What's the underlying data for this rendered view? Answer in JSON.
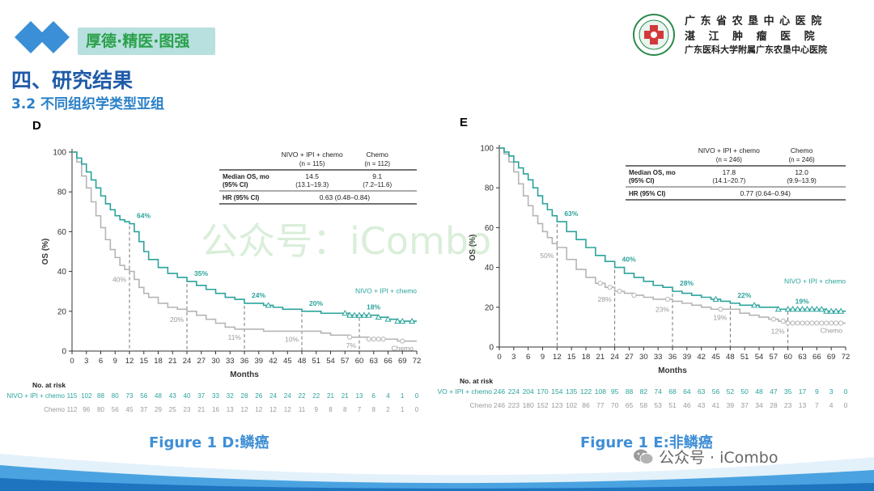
{
  "header": {
    "motto": "厚德·精医·图强",
    "hospital_name_line1": "广 东 省 农 垦 中 心 医 院",
    "hospital_name_line2": "湛 江 肿 瘤 医 院",
    "hospital_name_line3": "广东医科大学附属广东农垦中心医院",
    "section_title": "四、研究结果",
    "subsection_title": "3.2 不同组织学类型亚组"
  },
  "captions": {
    "figure_d": "Figure 1 D:鳞癌",
    "figure_e": "Figure 1 E:非鳞癌"
  },
  "watermarks": {
    "center": "公众号：iCombo",
    "corner": "公众号 · iCombo"
  },
  "colors": {
    "nivo": "#2aa39b",
    "chemo": "#b5b5b5",
    "accent_blue": "#1f5aa8"
  },
  "chart_data": [
    {
      "panel": "D",
      "type": "line",
      "title": "",
      "xlabel": "Months",
      "ylabel": "OS (%)",
      "xlim": [
        0,
        72
      ],
      "ylim": [
        0,
        100
      ],
      "xticks": [
        0,
        3,
        6,
        9,
        12,
        15,
        18,
        21,
        24,
        27,
        30,
        33,
        36,
        39,
        42,
        45,
        48,
        51,
        54,
        57,
        60,
        63,
        66,
        69,
        72
      ],
      "yticks": [
        0,
        20,
        40,
        60,
        80,
        100
      ],
      "table": {
        "col1": "NIVO + IPI + chemo",
        "col1_n": "(n = 115)",
        "col2": "Chemo",
        "col2_n": "(n = 112)",
        "row1_label": "Median OS, mo",
        "row1_sub": "(95% CI)",
        "row1_v1": "14.5",
        "row1_v1_ci": "(13.1–19.3)",
        "row1_v2": "9.1",
        "row1_v2_ci": "(7.2–11.6)",
        "row2_label": "HR (95% CI)",
        "row2_value": "0.63 (0.48–0.84)"
      },
      "series": [
        {
          "name": "NIVO + IPI + chemo",
          "label": "NIVO + IPI + chemo",
          "x": [
            0,
            1,
            2,
            3,
            4,
            5,
            6,
            7,
            8,
            9,
            10,
            11,
            12,
            13,
            14,
            15,
            16,
            18,
            20,
            22,
            24,
            26,
            28,
            30,
            32,
            34,
            36,
            38,
            40,
            42,
            44,
            46,
            48,
            50,
            52,
            54,
            56,
            58,
            60,
            62,
            64,
            66,
            68,
            70,
            72
          ],
          "y": [
            100,
            97,
            94,
            90,
            86,
            82,
            78,
            74,
            71,
            68,
            66,
            65,
            64,
            60,
            55,
            50,
            46,
            42,
            39,
            37,
            35,
            33,
            31,
            29,
            27,
            26,
            24,
            24,
            23,
            22,
            21,
            21,
            20,
            20,
            19,
            19,
            19,
            18,
            18,
            18,
            17,
            16,
            15,
            15,
            15
          ],
          "censors_x": [
            41,
            57,
            58,
            59,
            60,
            61,
            62,
            64,
            66,
            68,
            69,
            71
          ],
          "annotations": [
            {
              "x": 12,
              "y": 64,
              "text": "64%"
            },
            {
              "x": 24,
              "y": 35,
              "text": "35%"
            },
            {
              "x": 36,
              "y": 24,
              "text": "24%"
            },
            {
              "x": 48,
              "y": 20,
              "text": "20%"
            },
            {
              "x": 60,
              "y": 18,
              "text": "18%"
            }
          ]
        },
        {
          "name": "Chemo",
          "label": "Chemo",
          "x": [
            0,
            1,
            2,
            3,
            4,
            5,
            6,
            7,
            8,
            9,
            10,
            11,
            12,
            13,
            14,
            15,
            16,
            18,
            20,
            22,
            24,
            26,
            28,
            30,
            32,
            34,
            36,
            38,
            40,
            42,
            44,
            46,
            48,
            50,
            52,
            54,
            56,
            58,
            60,
            62,
            64,
            66,
            68,
            70,
            72
          ],
          "y": [
            100,
            95,
            88,
            82,
            75,
            68,
            62,
            56,
            51,
            47,
            43,
            41,
            40,
            36,
            32,
            29,
            27,
            24,
            22,
            21,
            20,
            18,
            16,
            14,
            12,
            11,
            11,
            11,
            10,
            10,
            10,
            10,
            10,
            10,
            9,
            8,
            8,
            7,
            7,
            6,
            6,
            6,
            5,
            5,
            5
          ],
          "censors_x": [
            58,
            62,
            63,
            64,
            65,
            69
          ],
          "annotations": [
            {
              "x": 12,
              "y": 40,
              "text": "40%"
            },
            {
              "x": 24,
              "y": 20,
              "text": "20%"
            },
            {
              "x": 36,
              "y": 11,
              "text": "11%"
            },
            {
              "x": 48,
              "y": 10,
              "text": "10%"
            },
            {
              "x": 60,
              "y": 7,
              "text": "7%"
            }
          ]
        }
      ],
      "at_risk": {
        "title": "No. at risk",
        "rows": [
          {
            "label": "NIVO + IPI + chemo",
            "values": [
              "115",
              "102",
              "88",
              "80",
              "73",
              "56",
              "48",
              "43",
              "40",
              "37",
              "33",
              "32",
              "28",
              "26",
              "24",
              "24",
              "22",
              "22",
              "21",
              "21",
              "13",
              "6",
              "4",
              "1",
              "0"
            ]
          },
          {
            "label": "Chemo",
            "values": [
              "112",
              "96",
              "80",
              "56",
              "45",
              "37",
              "29",
              "25",
              "23",
              "21",
              "16",
              "13",
              "12",
              "12",
              "12",
              "12",
              "11",
              "9",
              "8",
              "8",
              "7",
              "8",
              "2",
              "1",
              "0"
            ]
          }
        ]
      }
    },
    {
      "panel": "E",
      "type": "line",
      "title": "",
      "xlabel": "Months",
      "ylabel": "OS (%)",
      "xlim": [
        0,
        72
      ],
      "ylim": [
        0,
        100
      ],
      "xticks": [
        0,
        3,
        6,
        9,
        12,
        15,
        18,
        21,
        24,
        27,
        30,
        33,
        36,
        39,
        42,
        45,
        48,
        51,
        54,
        57,
        60,
        63,
        66,
        69,
        72
      ],
      "yticks": [
        0,
        20,
        40,
        60,
        80,
        100
      ],
      "table": {
        "col1": "NIVO + IPI + chemo",
        "col1_n": "(n = 246)",
        "col2": "Chemo",
        "col2_n": "(n = 246)",
        "row1_label": "Median OS, mo",
        "row1_sub": "(95% CI)",
        "row1_v1": "17.8",
        "row1_v1_ci": "(14.1–20.7)",
        "row1_v2": "12.0",
        "row1_v2_ci": "(9.9–13.9)",
        "row2_label": "HR (95% CI)",
        "row2_value": "0.77 (0.64–0.94)"
      },
      "series": [
        {
          "name": "NIVO + IPI + chemo",
          "label": "NIVO + IPI + chemo",
          "x": [
            0,
            1,
            2,
            3,
            4,
            5,
            6,
            7,
            8,
            9,
            10,
            11,
            12,
            14,
            16,
            18,
            20,
            22,
            24,
            26,
            28,
            30,
            32,
            34,
            36,
            38,
            40,
            42,
            44,
            46,
            48,
            50,
            52,
            54,
            56,
            58,
            60,
            62,
            64,
            66,
            68,
            70,
            72
          ],
          "y": [
            100,
            98,
            96,
            93,
            90,
            87,
            84,
            80,
            76,
            72,
            69,
            66,
            63,
            58,
            54,
            50,
            46,
            43,
            40,
            37,
            35,
            33,
            31,
            30,
            28,
            27,
            26,
            25,
            24,
            23,
            22,
            21,
            21,
            20,
            20,
            19,
            19,
            19,
            19,
            19,
            18,
            18,
            18
          ],
          "censors_x": [
            45,
            53,
            58,
            60,
            61,
            62,
            63,
            64,
            65,
            66,
            67,
            68,
            69,
            70,
            71
          ],
          "annotations": [
            {
              "x": 12,
              "y": 63,
              "text": "63%"
            },
            {
              "x": 24,
              "y": 40,
              "text": "40%"
            },
            {
              "x": 36,
              "y": 28,
              "text": "28%"
            },
            {
              "x": 48,
              "y": 22,
              "text": "22%"
            },
            {
              "x": 60,
              "y": 19,
              "text": "19%"
            }
          ]
        },
        {
          "name": "Chemo",
          "label": "Chemo",
          "x": [
            0,
            1,
            2,
            3,
            4,
            5,
            6,
            7,
            8,
            9,
            10,
            11,
            12,
            14,
            16,
            18,
            20,
            22,
            24,
            26,
            28,
            30,
            32,
            34,
            36,
            38,
            40,
            42,
            44,
            46,
            48,
            50,
            52,
            54,
            56,
            58,
            60,
            62,
            64,
            66,
            68,
            70,
            72
          ],
          "y": [
            100,
            97,
            93,
            88,
            82,
            76,
            71,
            66,
            62,
            58,
            55,
            52,
            50,
            44,
            39,
            35,
            32,
            30,
            28,
            27,
            26,
            25,
            24,
            24,
            23,
            22,
            21,
            20,
            19,
            19,
            19,
            17,
            16,
            15,
            14,
            13,
            12,
            12,
            12,
            12,
            12,
            12,
            12
          ],
          "censors_x": [
            21,
            23,
            25,
            28,
            35,
            46,
            57,
            59,
            60,
            61,
            62,
            63,
            64,
            65,
            66,
            67,
            68,
            69,
            70,
            71
          ],
          "annotations": [
            {
              "x": 12,
              "y": 50,
              "text": "50%"
            },
            {
              "x": 24,
              "y": 28,
              "text": "28%"
            },
            {
              "x": 36,
              "y": 23,
              "text": "23%"
            },
            {
              "x": 48,
              "y": 19,
              "text": "19%"
            },
            {
              "x": 60,
              "y": 12,
              "text": "12%"
            }
          ]
        }
      ],
      "at_risk": {
        "title": "No. at risk",
        "rows": [
          {
            "label": "NIVO + IPI + chemo",
            "values": [
              "246",
              "224",
              "204",
              "170",
              "154",
              "135",
              "122",
              "108",
              "95",
              "88",
              "82",
              "74",
              "68",
              "64",
              "63",
              "56",
              "52",
              "50",
              "48",
              "47",
              "35",
              "17",
              "9",
              "3",
              "0"
            ]
          },
          {
            "label": "Chemo",
            "values": [
              "246",
              "223",
              "180",
              "152",
              "123",
              "102",
              "86",
              "77",
              "70",
              "65",
              "58",
              "53",
              "51",
              "46",
              "43",
              "41",
              "39",
              "37",
              "34",
              "28",
              "23",
              "13",
              "7",
              "4",
              "0"
            ]
          }
        ]
      }
    }
  ]
}
